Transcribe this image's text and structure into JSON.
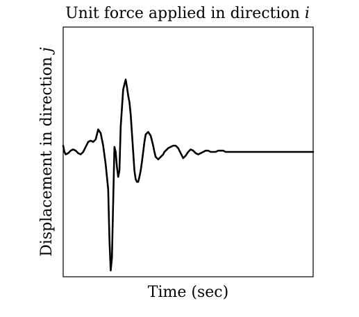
{
  "chart_data": {
    "type": "line",
    "title": "Unit force applied in direction ",
    "title_var": "i",
    "xlabel": "Time (sec)",
    "ylabel": "Displacement in direction ",
    "ylabel_var": "j",
    "xticks": [],
    "yticks": [],
    "grid": false,
    "legend": "none",
    "xlim": [
      0,
      100
    ],
    "ylim": [
      -100,
      100
    ],
    "line_color": "#000000",
    "series": [
      {
        "x": [
          0,
          0.5,
          1,
          2,
          3,
          4,
          5,
          6,
          7,
          8,
          9,
          10,
          11,
          12,
          13,
          14,
          15,
          16,
          17,
          18,
          18.5,
          19,
          19.5,
          20,
          20.5,
          21,
          21.5,
          22,
          22.5,
          23,
          24,
          25,
          25.5,
          26,
          26.5,
          27,
          27.5,
          28,
          28.5,
          29,
          29.5,
          30,
          30.5,
          31,
          31.5,
          32,
          32.5,
          33,
          34,
          35,
          36,
          36.5,
          37,
          37.5,
          38,
          38.5,
          39,
          39.5,
          40,
          40.5,
          41,
          41.5,
          42,
          43,
          44,
          45,
          46,
          47,
          48,
          49,
          50,
          51,
          52,
          53,
          54,
          55,
          56,
          57,
          58,
          59,
          60,
          61,
          62,
          63,
          64,
          65,
          66,
          67,
          68,
          69,
          70,
          72,
          74,
          76,
          78,
          80,
          82,
          84,
          86,
          88,
          90,
          92,
          94,
          96,
          98,
          100
        ],
        "y": [
          5,
          0,
          -2,
          -1,
          1,
          2,
          1,
          -1,
          -2,
          0,
          4,
          8,
          9,
          8,
          10,
          18,
          15,
          5,
          -10,
          -30,
          -70,
          -95,
          -85,
          -40,
          4,
          0,
          -12,
          -20,
          -15,
          20,
          50,
          58,
          52,
          45,
          40,
          30,
          15,
          0,
          -15,
          -22,
          -24,
          -24,
          -20,
          -15,
          -8,
          0,
          8,
          14,
          16,
          13,
          5,
          0,
          -4,
          -5,
          -6,
          -5,
          -4,
          -3,
          -2,
          0,
          1,
          2,
          3,
          4,
          5,
          5,
          3,
          -1,
          -5,
          -3,
          0,
          2,
          1,
          -1,
          -2,
          -1,
          0,
          1,
          1,
          0,
          0,
          0,
          1,
          1,
          1,
          0,
          0,
          0,
          0,
          0,
          0,
          0,
          0,
          0,
          0,
          0,
          0,
          0,
          0,
          0,
          0,
          0,
          0,
          0,
          0,
          0
        ]
      }
    ]
  }
}
